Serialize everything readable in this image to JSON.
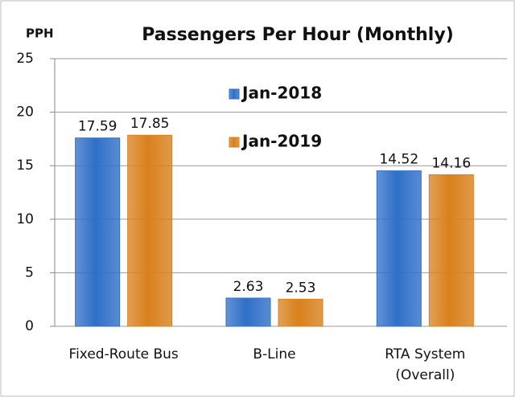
{
  "chart_data": {
    "type": "bar",
    "title": "Passengers Per Hour (Monthly)",
    "y_label": "PPH",
    "categories": [
      "Fixed-Route Bus",
      "B-Line",
      "RTA System (Overall)"
    ],
    "series": [
      {
        "name": "Jan-2018",
        "color": "#2f6fc8",
        "values": [
          17.59,
          2.63,
          14.52
        ]
      },
      {
        "name": "Jan-2019",
        "color": "#d9801c",
        "values": [
          17.85,
          2.53,
          14.16
        ]
      }
    ],
    "ylim": [
      0,
      25
    ],
    "yticks": [
      0,
      5,
      10,
      15,
      20,
      25
    ],
    "grid": true,
    "legend": "top"
  }
}
